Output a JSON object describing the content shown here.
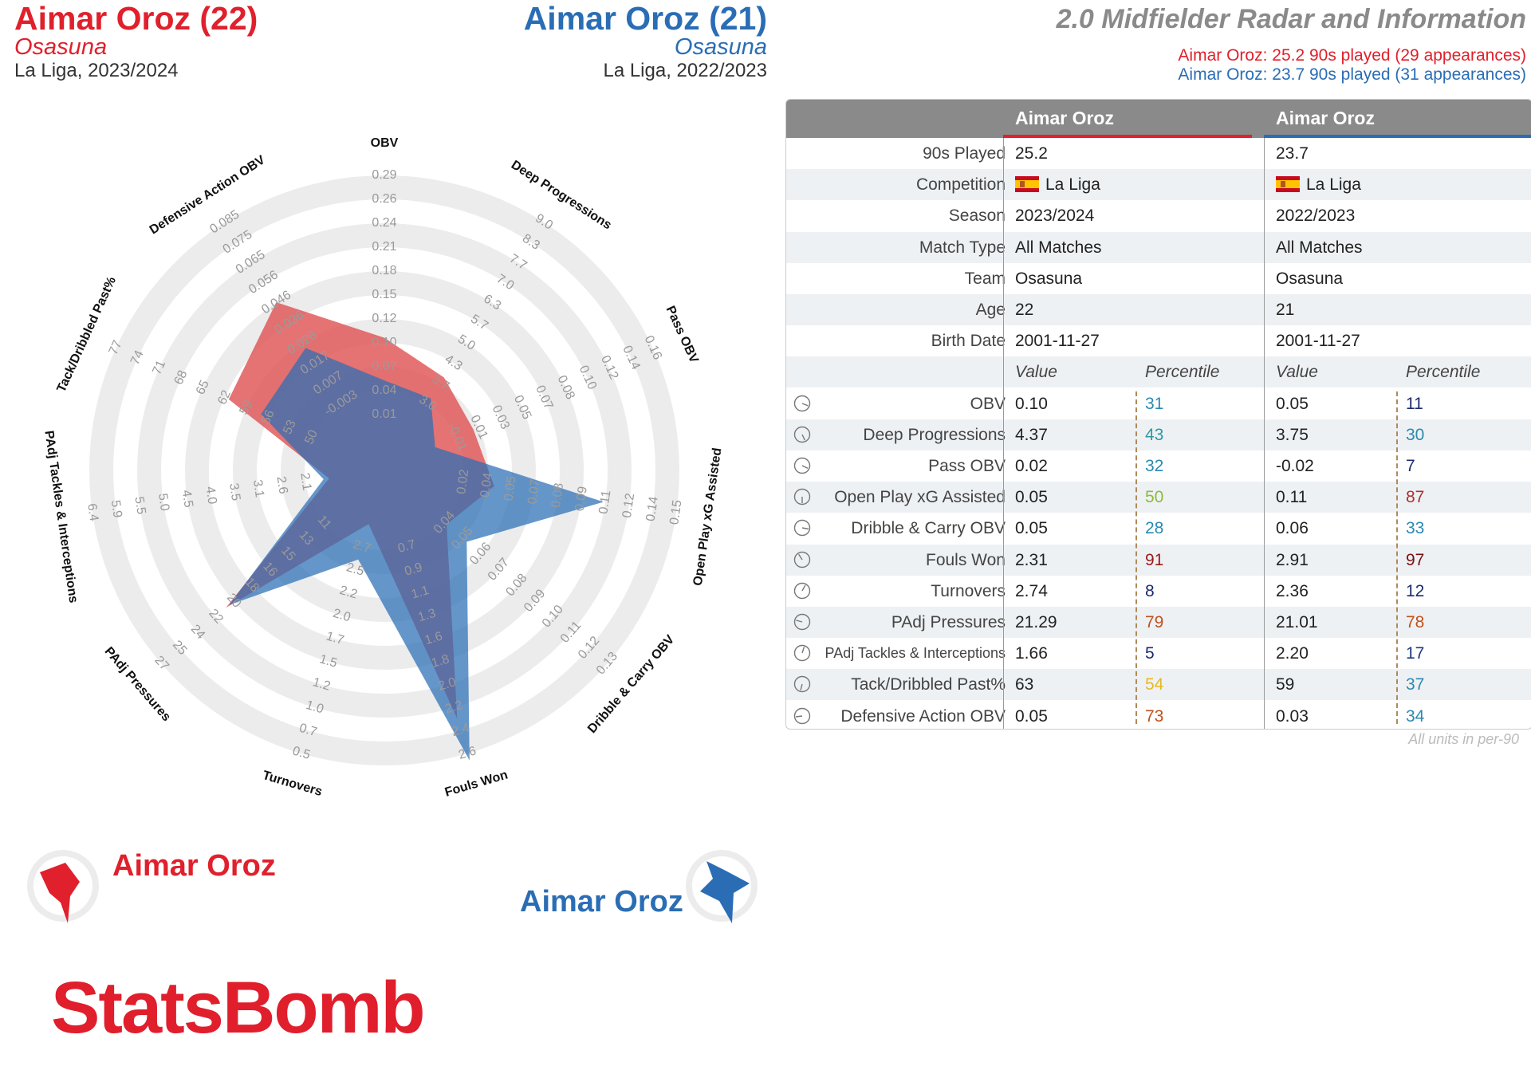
{
  "players": [
    {
      "name": "Aimar Oroz (22)",
      "team": "Osasuna",
      "competition_season": "La Liga, 2023/2024",
      "color": "#e0202c",
      "legend": "Aimar Oroz",
      "info": "Aimar Oroz: 25.2 90s played (29 appearances)"
    },
    {
      "name": "Aimar Oroz (21)",
      "team": "Osasuna",
      "competition_season": "La Liga, 2022/2023",
      "color": "#2a6db5",
      "legend": "Aimar Oroz",
      "info": "Aimar Oroz: 23.7 90s played (31 appearances)"
    }
  ],
  "title": "2.0 Midfielder Radar and Information",
  "units_note": "All units in per-90",
  "logo_text": "StatsBomb",
  "table": {
    "headers": [
      "Aimar Oroz",
      "Aimar Oroz"
    ],
    "info_rows": [
      {
        "label": "90s Played",
        "v1": "25.2",
        "v2": "23.7"
      },
      {
        "label": "Competition",
        "v1": "La Liga",
        "v2": "La Liga",
        "flag": true
      },
      {
        "label": "Season",
        "v1": "2023/2024",
        "v2": "2022/2023"
      },
      {
        "label": "Match Type",
        "v1": "All Matches",
        "v2": "All Matches"
      },
      {
        "label": "Team",
        "v1": "Osasuna",
        "v2": "Osasuna"
      },
      {
        "label": "Age",
        "v1": "22",
        "v2": "21"
      },
      {
        "label": "Birth Date",
        "v1": "2001-11-27",
        "v2": "2001-11-27"
      }
    ],
    "sub_headers": {
      "value": "Value",
      "percentile": "Percentile"
    },
    "stat_rows": [
      {
        "label": "OBV",
        "v1": "0.10",
        "p1": "31",
        "p1c": "#2a8ab0",
        "v2": "0.05",
        "p2": "11",
        "p2c": "#1c2a6e",
        "pct1": 0.31,
        "pct2": 0.11
      },
      {
        "label": "Deep Progressions",
        "v1": "4.37",
        "p1": "43",
        "p1c": "#2a9aa0",
        "v2": "3.75",
        "p2": "30",
        "p2c": "#2a8ab0",
        "pct1": 0.43,
        "pct2": 0.3
      },
      {
        "label": "Pass OBV",
        "v1": "0.02",
        "p1": "32",
        "p1c": "#2a8ab0",
        "v2": "-0.02",
        "p2": "7",
        "p2c": "#1c2a6e",
        "pct1": 0.32,
        "pct2": 0.07
      },
      {
        "label": "Open Play xG Assisted",
        "v1": "0.05",
        "p1": "50",
        "p1c": "#8bbb3a",
        "v2": "0.11",
        "p2": "87",
        "p2c": "#b0302a",
        "pct1": 0.5,
        "pct2": 0.87
      },
      {
        "label": "Dribble & Carry OBV",
        "v1": "0.05",
        "p1": "28",
        "p1c": "#2a8ab0",
        "v2": "0.06",
        "p2": "33",
        "p2c": "#2a8ab0",
        "pct1": 0.28,
        "pct2": 0.33
      },
      {
        "label": "Fouls Won",
        "v1": "2.31",
        "p1": "91",
        "p1c": "#9a1a1a",
        "v2": "2.91",
        "p2": "97",
        "p2c": "#7a1010",
        "pct1": 0.91,
        "pct2": 0.97
      },
      {
        "label": "Turnovers",
        "v1": "2.74",
        "p1": "8",
        "p1c": "#1c2a6e",
        "v2": "2.36",
        "p2": "12",
        "p2c": "#1c2a6e",
        "pct1": 0.08,
        "pct2": 0.12
      },
      {
        "label": "PAdj Pressures",
        "v1": "21.29",
        "p1": "79",
        "p1c": "#c0501a",
        "v2": "21.01",
        "p2": "78",
        "p2c": "#c0501a",
        "pct1": 0.79,
        "pct2": 0.78
      },
      {
        "label": "PAdj Tackles & Interceptions",
        "v1": "1.66",
        "p1": "5",
        "p1c": "#1c2a6e",
        "v2": "2.20",
        "p2": "17",
        "p2c": "#1c3a7e",
        "pct1": 0.05,
        "pct2": 0.17
      },
      {
        "label": "Tack/Dribbled Past%",
        "v1": "63",
        "p1": "54",
        "p1c": "#e8b820",
        "v2": "59",
        "p2": "37",
        "p2c": "#2a8ab0",
        "pct1": 0.54,
        "pct2": 0.37
      },
      {
        "label": "Defensive Action OBV",
        "v1": "0.05",
        "p1": "73",
        "p1c": "#c0501a",
        "v2": "0.03",
        "p2": "34",
        "p2c": "#2a8ab0",
        "pct1": 0.73,
        "pct2": 0.34
      }
    ]
  },
  "chart_data": {
    "type": "radar",
    "axes": [
      {
        "label": "OBV",
        "ticks": [
          "0.29",
          "0.26",
          "0.24",
          "0.21",
          "0.18",
          "0.15",
          "0.12",
          "0.10",
          "0.07",
          "0.04",
          "0.01"
        ],
        "p1": 0.1,
        "p2": 0.05
      },
      {
        "label": "Deep Progressions",
        "ticks": [
          "9.0",
          "8.3",
          "7.7",
          "7.0",
          "6.3",
          "5.7",
          "5.0",
          "4.3",
          "3.7",
          "3.0"
        ],
        "p1": 4.37,
        "p2": 3.75
      },
      {
        "label": "Pass OBV",
        "ticks": [
          "0.16",
          "0.14",
          "0.12",
          "0.10",
          "0.08",
          "0.07",
          "0.05",
          "0.03",
          "0.01",
          "-0.01"
        ],
        "p1": 0.02,
        "p2": -0.02
      },
      {
        "label": "Open Play xG Assisted",
        "ticks": [
          "0.15",
          "0.14",
          "0.12",
          "0.11",
          "0.09",
          "0.08",
          "0.07",
          "0.05",
          "0.04",
          "0.02"
        ],
        "p1": 0.05,
        "p2": 0.11
      },
      {
        "label": "Dribble & Carry OBV",
        "ticks": [
          "0.13",
          "0.12",
          "0.11",
          "0.10",
          "0.09",
          "0.08",
          "0.07",
          "0.06",
          "0.05",
          "0.04"
        ],
        "p1": 0.05,
        "p2": 0.06
      },
      {
        "label": "Fouls Won",
        "ticks": [
          "2.6",
          "2.4",
          "2.2",
          "2.0",
          "1.8",
          "1.6",
          "1.3",
          "1.1",
          "0.9",
          "0.7"
        ],
        "p1": 2.31,
        "p2": 2.91
      },
      {
        "label": "Turnovers",
        "ticks": [
          "0.5",
          "0.7",
          "1.0",
          "1.2",
          "1.5",
          "1.7",
          "2.0",
          "2.2",
          "2.5",
          "2.7"
        ],
        "p1": 2.74,
        "p2": 2.36
      },
      {
        "label": "PAdj Pressures",
        "ticks": [
          "27",
          "25",
          "24",
          "22",
          "20",
          "18",
          "16",
          "15",
          "13",
          "11"
        ],
        "p1": 21.29,
        "p2": 21.01
      },
      {
        "label": "PAdj Tackles & Interceptions",
        "ticks": [
          "6.4",
          "5.9",
          "5.5",
          "5.0",
          "4.5",
          "4.0",
          "3.5",
          "3.1",
          "2.6",
          "2.1"
        ],
        "p1": 1.66,
        "p2": 2.2
      },
      {
        "label": "Tack/Dribbled Past%",
        "ticks": [
          "77",
          "74",
          "71",
          "68",
          "65",
          "62",
          "59",
          "56",
          "53",
          "50"
        ],
        "p1": 63,
        "p2": 59
      },
      {
        "label": "Defensive Action OBV",
        "ticks": [
          "0.085",
          "0.075",
          "0.065",
          "0.056",
          "0.046",
          "0.036",
          "0.026",
          "0.017",
          "0.007",
          "-0.003"
        ],
        "p1": 0.05,
        "p2": 0.03
      }
    ],
    "series": [
      {
        "name": "Aimar Oroz",
        "season": "2023/2024",
        "color": "#e06060"
      },
      {
        "name": "Aimar Oroz",
        "season": "2022/2023",
        "color": "#2f6db5"
      }
    ]
  }
}
